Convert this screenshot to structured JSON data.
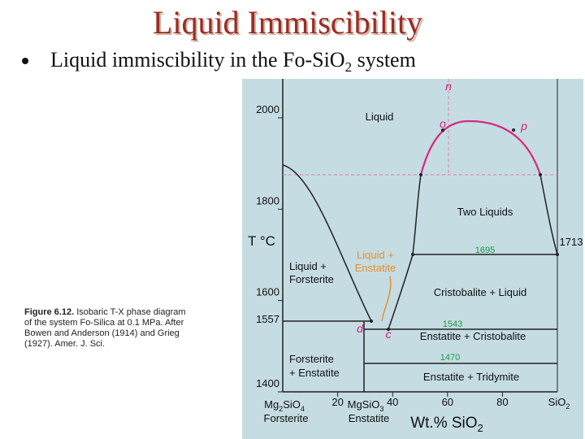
{
  "slide": {
    "title": "Liquid Immiscibility",
    "bullet": [
      "Liquid immiscibility in the Fo-SiO",
      "2",
      " system"
    ],
    "caption": {
      "bold": "Figure 6.12.",
      "lines": [
        " Isobaric T-X phase diagram",
        "of the system Fo-Silica at 0.1 MPa. After",
        "Bowen and Anderson (1914) and Grieg",
        "(1927). Amer. J. Sci."
      ]
    }
  },
  "figure": {
    "y_axis_label": "T °C",
    "yticks": [
      1400,
      1600,
      1800,
      2000
    ],
    "xticks": [
      20,
      40,
      60,
      80
    ],
    "x_axis_label": [
      "Wt.% SiO",
      "2"
    ],
    "left_end": [
      "Mg",
      "2",
      "SiO",
      "4"
    ],
    "left_end_name": "Forsterite",
    "mid_end": [
      "MgSiO",
      "3"
    ],
    "mid_end_name": "Enstatite",
    "right_end": [
      "SiO",
      "2"
    ],
    "labels": {
      "n": "n",
      "o": "o",
      "p": "p",
      "d": "d",
      "c": "c",
      "liquid": "Liquid",
      "two_liquids": "Two Liquids",
      "t1713": "1713",
      "t1695": "1695",
      "t1557": "1557",
      "t1543": "1543",
      "t1470": "1470",
      "liq_en_1": "Liquid +",
      "liq_en_2": "Enstatite",
      "liq_fo_1": "Liquid +",
      "liq_fo_2": "Forsterite",
      "cr_liq": "Cristobalite + Liquid",
      "en_cr": "Enstatite + Cristobalite",
      "fo_en_1": "Forsterite",
      "fo_en_2": "+ Enstatite",
      "en_tr": "Enstatite + Tridymite"
    }
  }
}
